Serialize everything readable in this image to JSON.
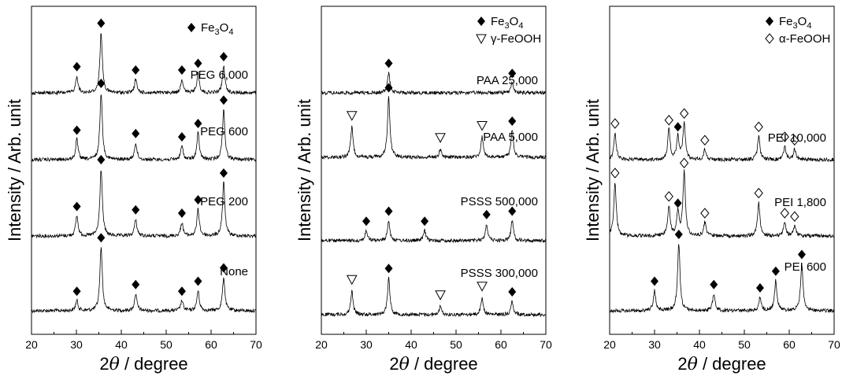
{
  "chart_data": [
    {
      "type": "line",
      "xlabel": "2θ / degree",
      "ylabel": "Intensity / Arb. unit",
      "xlim": [
        20,
        70
      ],
      "xticks": [
        "20",
        "30",
        "40",
        "50",
        "60",
        "70"
      ],
      "legend": [
        {
          "marker": "filled-diamond",
          "label": "Fe3O4",
          "label_main": "Fe",
          "label_sub1": "3",
          "label_mid": "O",
          "label_sub2": "4"
        }
      ],
      "legend_placement": "top-right",
      "series": [
        {
          "name": "None",
          "filled_diamond_peaks": [
            30.1,
            35.5,
            43.2,
            53.5,
            57.1,
            62.8
          ],
          "filled_heights": [
            0.15,
            0.95,
            0.25,
            0.15,
            0.3,
            0.5
          ],
          "open_peaks": [],
          "open_heights": [],
          "inverted_triangle_peaks": []
        },
        {
          "name": "PEG 200",
          "filled_diamond_peaks": [
            30.1,
            35.5,
            43.2,
            53.5,
            57.1,
            62.8
          ],
          "filled_heights": [
            0.3,
            1.0,
            0.25,
            0.2,
            0.4,
            0.8
          ],
          "open_peaks": [],
          "open_heights": [],
          "inverted_triangle_peaks": []
        },
        {
          "name": "PEG 600",
          "filled_diamond_peaks": [
            30.1,
            35.5,
            43.2,
            53.5,
            57.1,
            62.8
          ],
          "filled_heights": [
            0.3,
            1.0,
            0.25,
            0.2,
            0.4,
            0.75
          ],
          "open_peaks": [],
          "open_heights": [],
          "inverted_triangle_peaks": []
        },
        {
          "name": "PEG 6,000",
          "filled_diamond_peaks": [
            30.1,
            35.5,
            43.2,
            53.5,
            57.1,
            62.8
          ],
          "filled_heights": [
            0.25,
            0.9,
            0.2,
            0.2,
            0.3,
            0.4
          ],
          "open_peaks": [],
          "open_heights": [],
          "inverted_triangle_peaks": []
        }
      ]
    },
    {
      "type": "line",
      "xlabel": "2θ / degree",
      "ylabel": "Intensity / Arb. unit",
      "xlim": [
        20,
        70
      ],
      "xticks": [
        "20",
        "30",
        "40",
        "50",
        "60",
        "70"
      ],
      "legend": [
        {
          "marker": "filled-diamond",
          "label": "Fe3O4",
          "label_main": "Fe",
          "label_sub1": "3",
          "label_mid": "O",
          "label_sub2": "4"
        },
        {
          "marker": "open-triangle-down",
          "label": "γ-FeOOH"
        }
      ],
      "legend_placement": "top-right",
      "series": [
        {
          "name": "PSSS 300,000",
          "filled_diamond_peaks": [
            35.0,
            62.5
          ],
          "filled_heights": [
            0.55,
            0.2
          ],
          "open_peaks": [
            26.8,
            46.5,
            55.8
          ],
          "open_heights": [
            0.35,
            0.12,
            0.25
          ],
          "inverted_triangle_peaks": [
            26.8,
            46.5,
            55.8
          ]
        },
        {
          "name": "PSSS 500,000",
          "filled_diamond_peaks": [
            30.0,
            35.0,
            43.0,
            56.8,
            62.5
          ],
          "filled_heights": [
            0.15,
            0.3,
            0.15,
            0.25,
            0.3
          ],
          "open_peaks": [],
          "open_heights": [],
          "inverted_triangle_peaks": []
        },
        {
          "name": "PAA 5,000",
          "filled_diamond_peaks": [
            35.0,
            62.5
          ],
          "filled_heights": [
            0.9,
            0.4
          ],
          "open_peaks": [
            26.8,
            46.5,
            55.8
          ],
          "open_heights": [
            0.45,
            0.12,
            0.3
          ],
          "inverted_triangle_peaks": [
            26.8,
            46.5,
            55.8
          ]
        },
        {
          "name": "PAA 25,000",
          "filled_diamond_peaks": [
            35.0,
            62.5
          ],
          "filled_heights": [
            0.3,
            0.15
          ],
          "open_peaks": [],
          "open_heights": [],
          "inverted_triangle_peaks": []
        }
      ]
    },
    {
      "type": "line",
      "xlabel": "2θ / degree",
      "ylabel": "Intensity / Arb. unit",
      "xlim": [
        20,
        70
      ],
      "xticks": [
        "20",
        "30",
        "40",
        "50",
        "60",
        "70"
      ],
      "legend": [
        {
          "marker": "filled-diamond",
          "label": "Fe3O4",
          "label_main": "Fe",
          "label_sub1": "3",
          "label_mid": "O",
          "label_sub2": "4"
        },
        {
          "marker": "open-diamond",
          "label": "α-FeOOH"
        }
      ],
      "legend_placement": "top-right",
      "series": [
        {
          "name": "PEI 600",
          "filled_diamond_peaks": [
            30.0,
            35.4,
            43.2,
            53.5,
            57.0,
            62.8
          ],
          "filled_heights": [
            0.3,
            1.0,
            0.25,
            0.2,
            0.45,
            0.7
          ],
          "open_peaks": [],
          "open_heights": [],
          "open_diamond_peaks": []
        },
        {
          "name": "PEI 1,800",
          "filled_diamond_peaks": [
            35.2
          ],
          "filled_heights": [
            0.35
          ],
          "open_peaks": [
            21.2,
            33.2,
            36.6,
            41.2,
            53.2,
            59.0,
            61.2
          ],
          "open_heights": [
            0.8,
            0.45,
            0.95,
            0.2,
            0.5,
            0.2,
            0.15
          ],
          "open_diamond_peaks": [
            21.2,
            33.2,
            36.6,
            41.2,
            53.2,
            59.0,
            61.2
          ]
        },
        {
          "name": "PEI 10,000",
          "filled_diamond_peaks": [
            35.2
          ],
          "filled_heights": [
            0.35
          ],
          "open_peaks": [
            21.2,
            33.2,
            36.6,
            41.2,
            53.2,
            59.0,
            61.2
          ],
          "open_heights": [
            0.4,
            0.45,
            0.55,
            0.15,
            0.35,
            0.2,
            0.15
          ],
          "open_diamond_peaks": [
            21.2,
            33.2,
            36.6,
            41.2,
            53.2,
            59.0,
            61.2
          ]
        }
      ]
    }
  ]
}
